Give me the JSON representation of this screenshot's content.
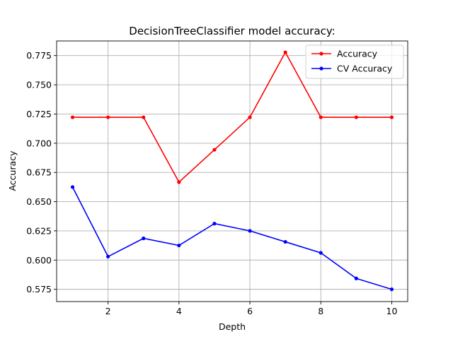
{
  "chart_data": {
    "type": "line",
    "title": "DecisionTreeClassifier model accuracy:",
    "xlabel": "Depth",
    "ylabel": "Accuracy",
    "x": [
      1,
      2,
      3,
      4,
      5,
      6,
      7,
      8,
      9,
      10
    ],
    "xlim": [
      0.55,
      10.45
    ],
    "ylim": [
      0.5645,
      0.7875
    ],
    "xticks": [
      2,
      4,
      6,
      8,
      10
    ],
    "yticks": [
      0.575,
      0.6,
      0.625,
      0.65,
      0.675,
      0.7,
      0.725,
      0.75,
      0.775
    ],
    "yticklabels": [
      "0.575",
      "0.600",
      "0.625",
      "0.650",
      "0.675",
      "0.700",
      "0.725",
      "0.750",
      "0.775"
    ],
    "grid": true,
    "legend_position": "top-right",
    "series": [
      {
        "name": "Accuracy",
        "color": "#ff0000",
        "values": [
          0.7222,
          0.7222,
          0.7222,
          0.6667,
          0.6944,
          0.7222,
          0.7778,
          0.7222,
          0.7222,
          0.7222
        ]
      },
      {
        "name": "CV Accuracy",
        "color": "#0000ff",
        "values": [
          0.6625,
          0.603,
          0.6186,
          0.6125,
          0.6312,
          0.625,
          0.6156,
          0.6062,
          0.5843,
          0.575
        ]
      }
    ]
  }
}
